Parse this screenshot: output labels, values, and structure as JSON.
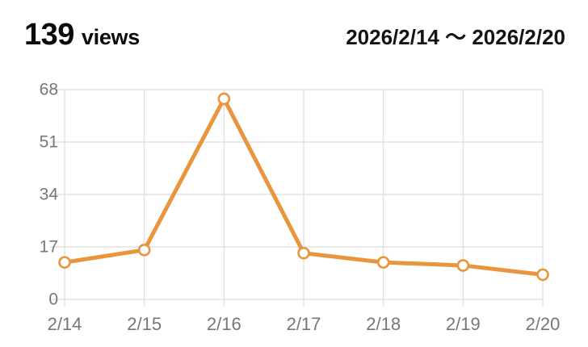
{
  "header": {
    "views_count": "139",
    "views_label": "views",
    "date_range": "2026/2/14 〜 2026/2/20"
  },
  "chart_data": {
    "type": "line",
    "title": "139 views",
    "subtitle": "2026/2/14 〜 2026/2/20",
    "x": [
      "2/14",
      "2/15",
      "2/16",
      "2/17",
      "2/18",
      "2/19",
      "2/20"
    ],
    "series": [
      {
        "name": "views",
        "values": [
          12,
          16,
          65,
          15,
          12,
          11,
          8
        ]
      }
    ],
    "xlabel": "",
    "ylabel": "",
    "ylim": [
      0,
      68
    ],
    "y_ticks": [
      0,
      17,
      34,
      51,
      68
    ],
    "grid": true,
    "legend": false,
    "marker": "hollow-circle",
    "colors": {
      "line": "#E8953D",
      "marker_fill": "#FFFFFF",
      "grid": "#E2E2E2",
      "tick_label": "#777777",
      "title_text": "#0B0B0B"
    }
  }
}
